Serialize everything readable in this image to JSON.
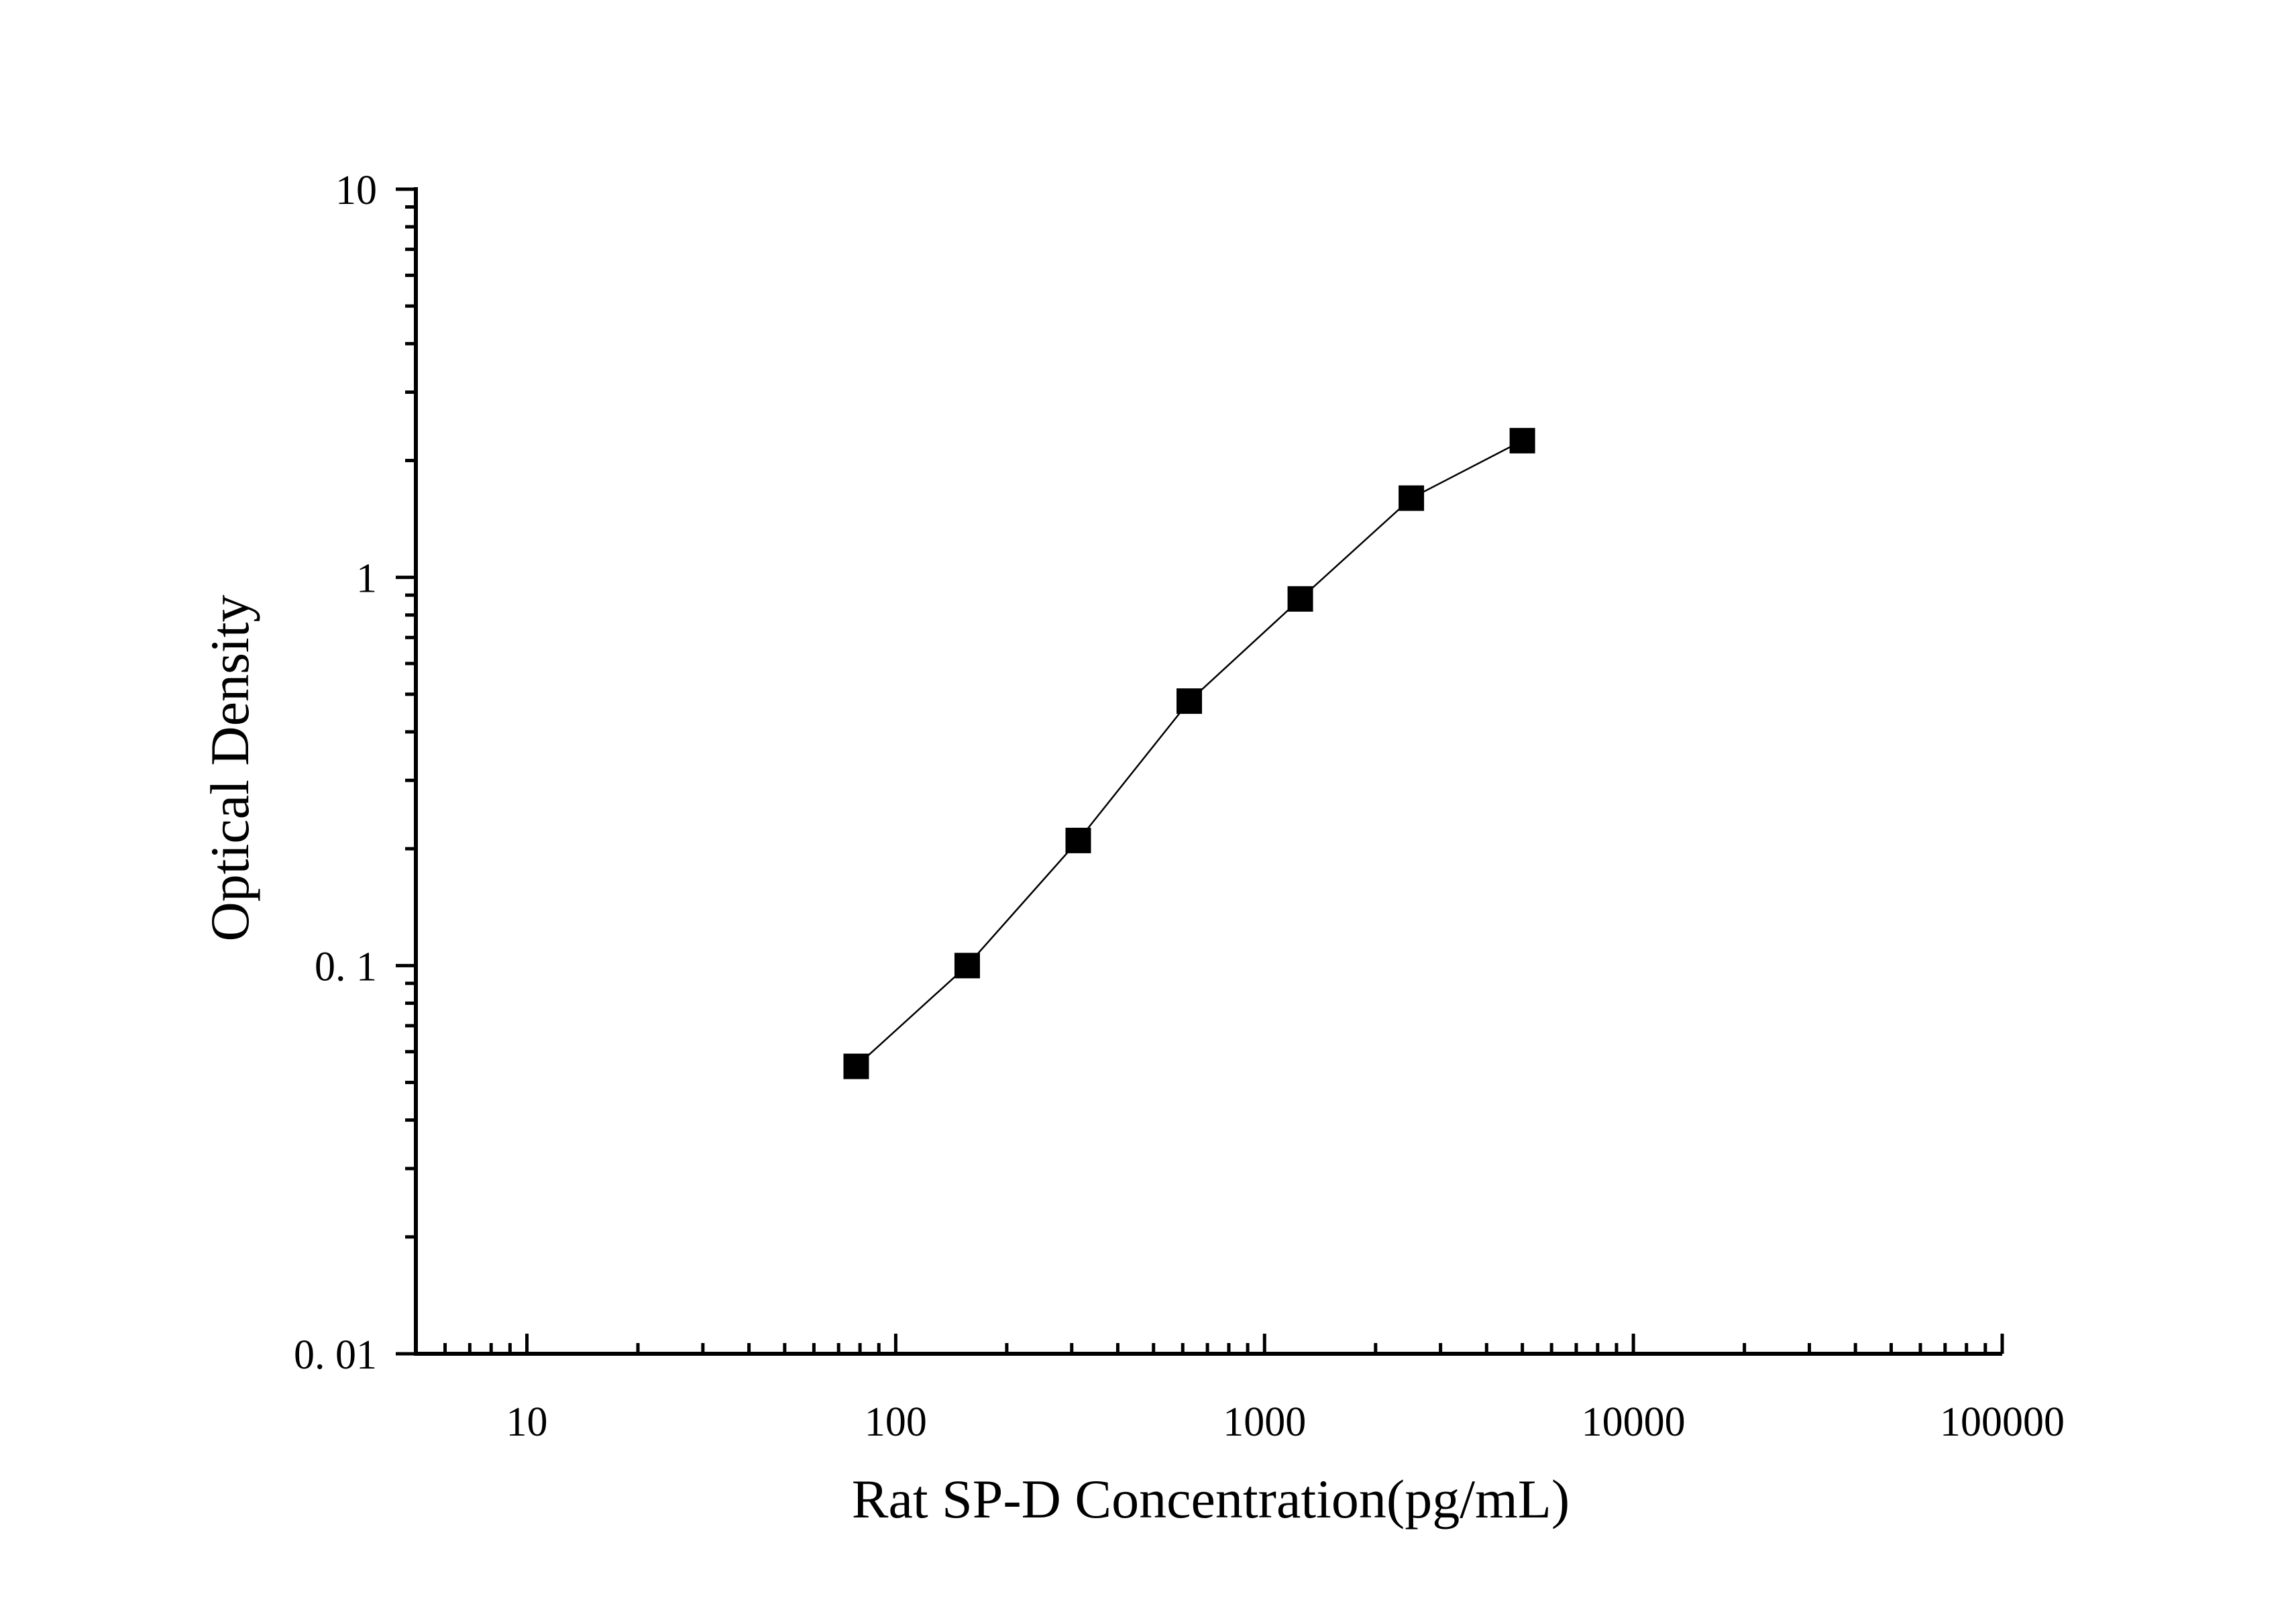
{
  "chart_data": {
    "type": "line",
    "xlabel": "Rat SP-D Concentration(pg/mL)",
    "ylabel": "Optical Density",
    "x_scale": "log",
    "y_scale": "log",
    "xlim": [
      5,
      100000
    ],
    "ylim": [
      0.01,
      10
    ],
    "x_ticks": [
      {
        "value": 10,
        "label": "10"
      },
      {
        "value": 100,
        "label": "100"
      },
      {
        "value": 1000,
        "label": "1000"
      },
      {
        "value": 10000,
        "label": "10000"
      },
      {
        "value": 100000,
        "label": "100000"
      }
    ],
    "y_ticks": [
      {
        "value": 0.01,
        "label": "0. 01"
      },
      {
        "value": 0.1,
        "label": "0. 1"
      },
      {
        "value": 1,
        "label": "1"
      },
      {
        "value": 10,
        "label": "10"
      }
    ],
    "series": [
      {
        "marker": "square",
        "color": "#000000",
        "points": [
          {
            "x": 78.13,
            "y": 0.055
          },
          {
            "x": 156.25,
            "y": 0.1
          },
          {
            "x": 312.5,
            "y": 0.21
          },
          {
            "x": 625,
            "y": 0.48
          },
          {
            "x": 1250,
            "y": 0.88
          },
          {
            "x": 2500,
            "y": 1.6
          },
          {
            "x": 5000,
            "y": 2.25
          }
        ]
      }
    ],
    "grid": false,
    "legend": "none"
  }
}
